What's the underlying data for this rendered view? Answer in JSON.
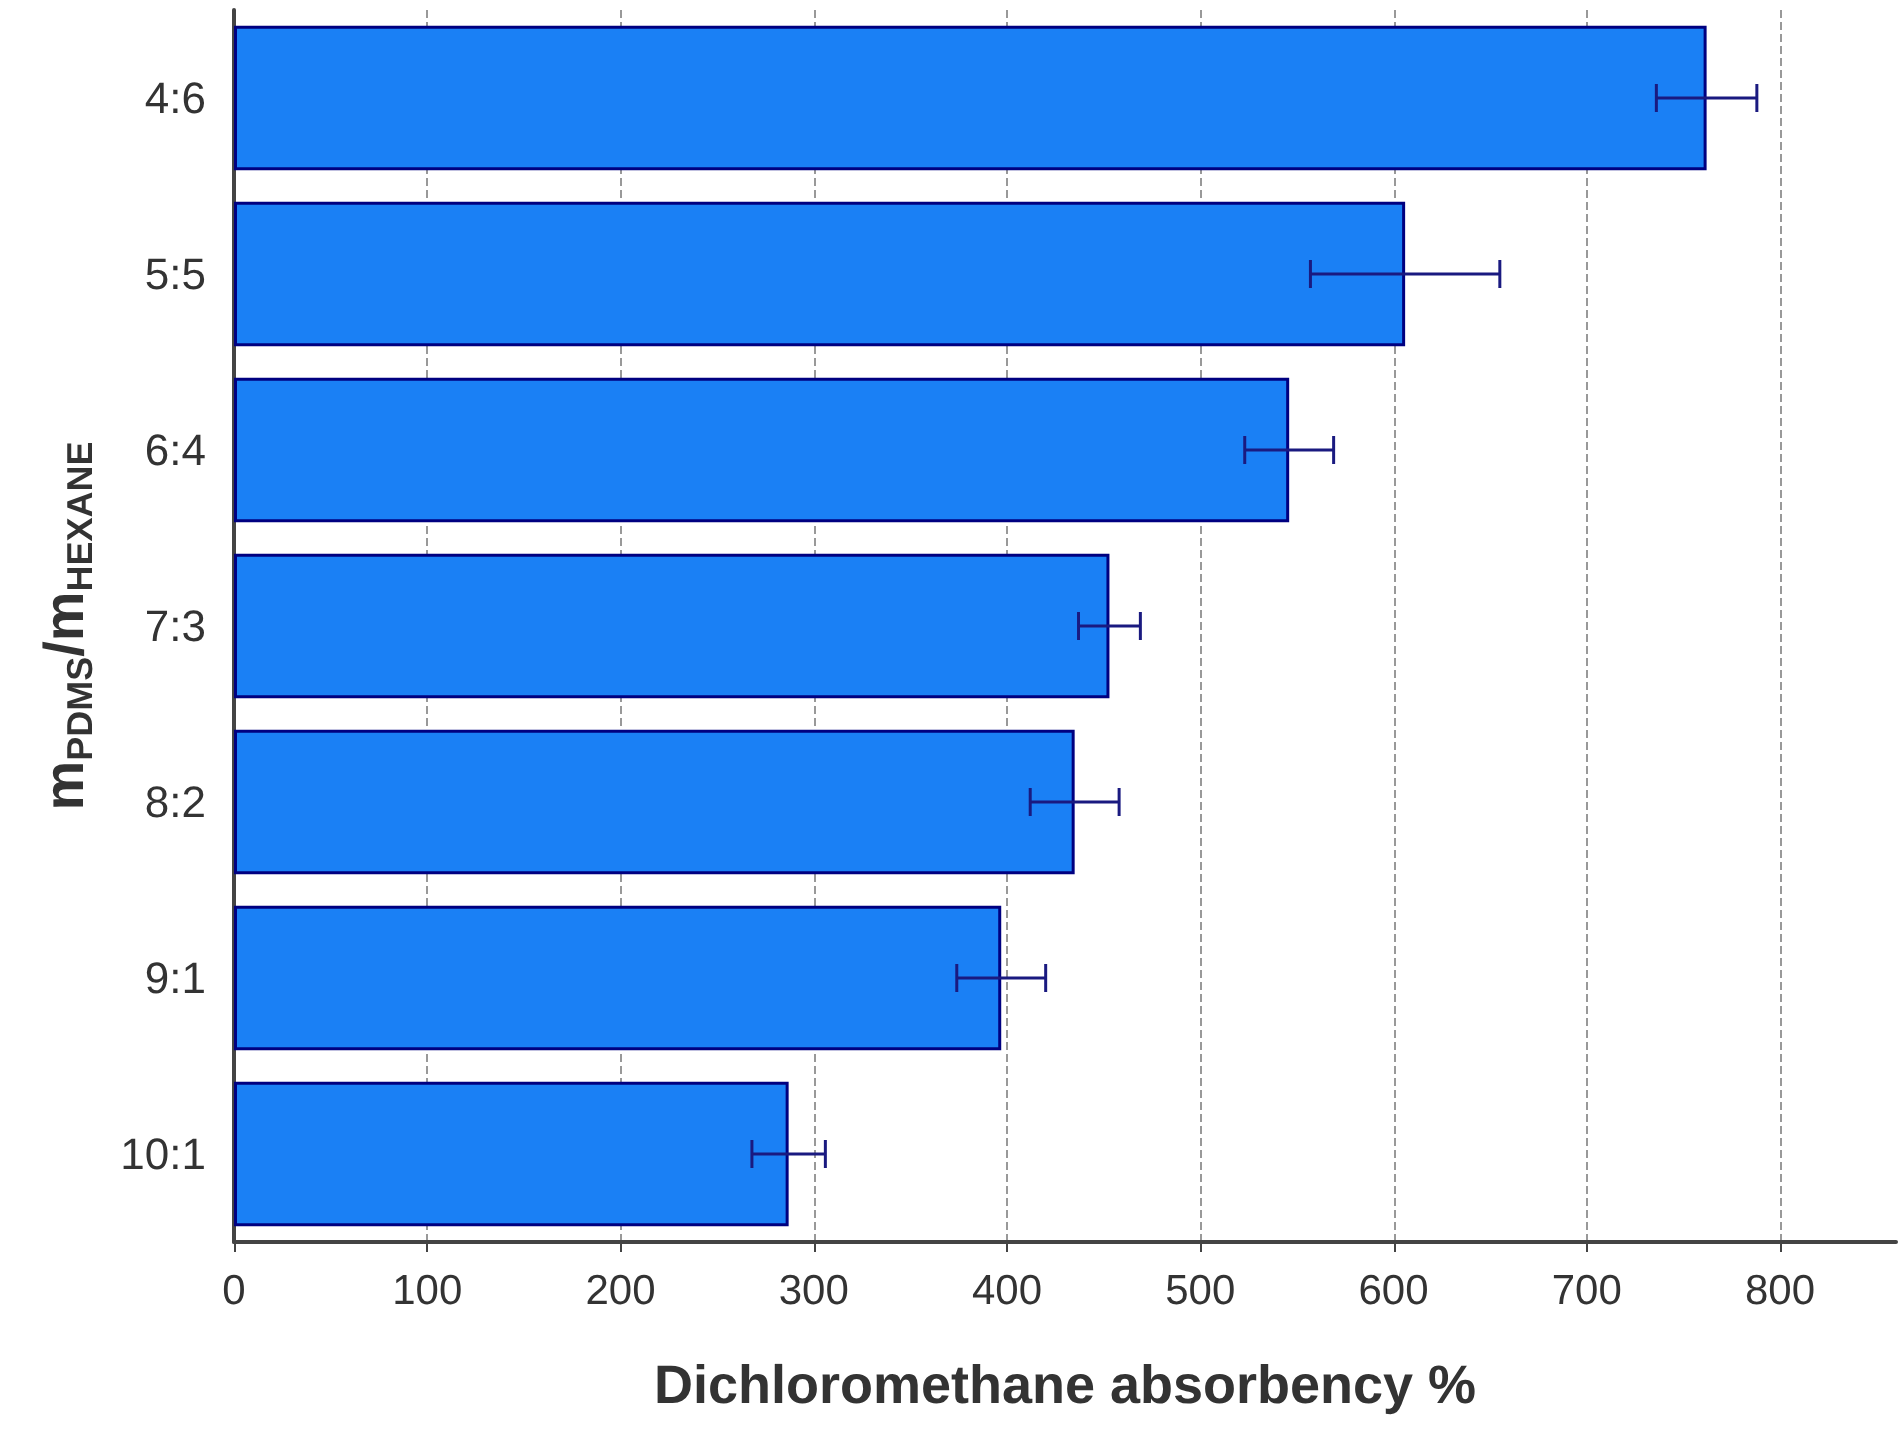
{
  "chart_data": {
    "type": "bar",
    "orientation": "horizontal",
    "xlabel": "Dichloromethane absorbency %",
    "ylabel": "m$_{PDMS}$/m$_{HEXANE}$",
    "categories": [
      "4:6",
      "5:5",
      "6:4",
      "7:3",
      "8:2",
      "9:1",
      "10:1"
    ],
    "values": [
      762,
      606,
      546,
      453,
      435,
      397,
      287
    ],
    "errors": [
      26,
      49,
      23,
      16,
      23,
      23,
      19
    ],
    "color": "#1a80f5",
    "xlim": [
      0,
      860
    ],
    "xticks": [
      0,
      100,
      200,
      300,
      400,
      500,
      600,
      700,
      800
    ],
    "grid": "x"
  }
}
